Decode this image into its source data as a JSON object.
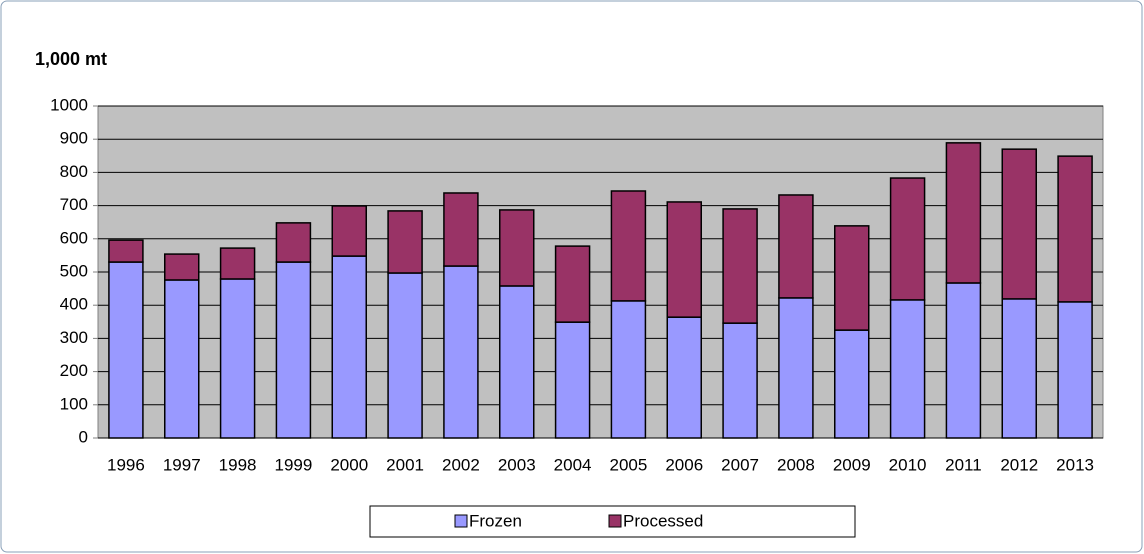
{
  "chart_data": {
    "type": "stacked-bar",
    "title": "1,000 mt",
    "categories": [
      "1996",
      "1997",
      "1998",
      "1999",
      "2000",
      "2001",
      "2002",
      "2003",
      "2004",
      "2005",
      "2006",
      "2007",
      "2008",
      "2009",
      "2010",
      "2011",
      "2012",
      "2013"
    ],
    "series": [
      {
        "name": "Frozen",
        "color": "#9999ff",
        "values": [
          530,
          476,
          479,
          530,
          548,
          497,
          518,
          458,
          349,
          413,
          364,
          346,
          422,
          325,
          416,
          467,
          419,
          410
        ]
      },
      {
        "name": "Processed",
        "color": "#993366",
        "values": [
          66,
          78,
          93,
          118,
          151,
          187,
          220,
          229,
          229,
          331,
          347,
          344,
          310,
          314,
          367,
          422,
          451,
          439
        ]
      }
    ],
    "ylim": [
      0,
      1000
    ],
    "yticks": [
      0,
      100,
      200,
      300,
      400,
      500,
      600,
      700,
      800,
      900,
      1000
    ],
    "grid": true,
    "legend": "bottom"
  }
}
